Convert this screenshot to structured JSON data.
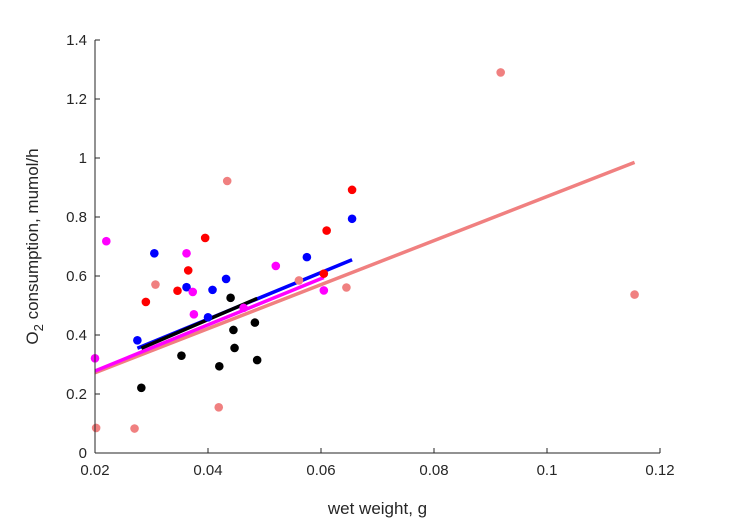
{
  "chart_data": {
    "type": "scatter",
    "title": "",
    "xlabel": "wet weight, g",
    "ylabel_main": "O",
    "ylabel_sub": "2",
    "ylabel_rest": " consumption, mumol/h",
    "xlim": [
      0.02,
      0.12
    ],
    "ylim": [
      0,
      1.4
    ],
    "xticks": [
      0.02,
      0.04,
      0.06,
      0.08,
      0.1,
      0.12
    ],
    "xtick_labels": [
      "0.02",
      "0.04",
      "0.06",
      "0.08",
      "0.1",
      "0.12"
    ],
    "yticks": [
      0,
      0.2,
      0.4,
      0.6,
      0.8,
      1,
      1.2,
      1.4
    ],
    "ytick_labels": [
      "0",
      "0.2",
      "0.4",
      "0.6",
      "0.8",
      "1",
      "1.2",
      "1.4"
    ],
    "grid": false,
    "series": [
      {
        "color": "#f08080",
        "points": [
          [
            0.0202,
            0.085
          ],
          [
            0.027,
            0.083
          ],
          [
            0.0307,
            0.571
          ],
          [
            0.0419,
            0.155
          ],
          [
            0.0434,
            0.922
          ],
          [
            0.0561,
            0.585
          ],
          [
            0.0645,
            0.561
          ],
          [
            0.0918,
            1.29
          ],
          [
            0.1155,
            0.537
          ]
        ],
        "fit": [
          [
            0.02,
            0.272
          ],
          [
            0.1155,
            0.985
          ]
        ]
      },
      {
        "color": "#ff0000",
        "points": [
          [
            0.029,
            0.512
          ],
          [
            0.0346,
            0.55
          ],
          [
            0.0365,
            0.619
          ],
          [
            0.0395,
            0.729
          ],
          [
            0.0605,
            0.608
          ],
          [
            0.061,
            0.754
          ],
          [
            0.0655,
            0.892
          ]
        ],
        "fit": []
      },
      {
        "color": "#0000ff",
        "points": [
          [
            0.0275,
            0.382
          ],
          [
            0.0305,
            0.677
          ],
          [
            0.0362,
            0.562
          ],
          [
            0.04,
            0.46
          ],
          [
            0.0408,
            0.553
          ],
          [
            0.0432,
            0.59
          ],
          [
            0.0575,
            0.664
          ],
          [
            0.0655,
            0.794
          ]
        ],
        "fit": [
          [
            0.0275,
            0.355
          ],
          [
            0.0655,
            0.655
          ]
        ]
      },
      {
        "color": "#ff00ff",
        "points": [
          [
            0.02,
            0.321
          ],
          [
            0.022,
            0.718
          ],
          [
            0.0362,
            0.677
          ],
          [
            0.0373,
            0.546
          ],
          [
            0.0375,
            0.47
          ],
          [
            0.0463,
            0.492
          ],
          [
            0.052,
            0.634
          ],
          [
            0.0605,
            0.551
          ]
        ],
        "fit": [
          [
            0.02,
            0.278
          ],
          [
            0.0605,
            0.595
          ]
        ]
      },
      {
        "color": "#000000",
        "points": [
          [
            0.0282,
            0.221
          ],
          [
            0.0353,
            0.33
          ],
          [
            0.042,
            0.294
          ],
          [
            0.044,
            0.526
          ],
          [
            0.0445,
            0.417
          ],
          [
            0.0447,
            0.356
          ],
          [
            0.0483,
            0.442
          ],
          [
            0.0487,
            0.315
          ]
        ],
        "fit": [
          [
            0.0282,
            0.355
          ],
          [
            0.0487,
            0.524
          ]
        ]
      }
    ]
  }
}
